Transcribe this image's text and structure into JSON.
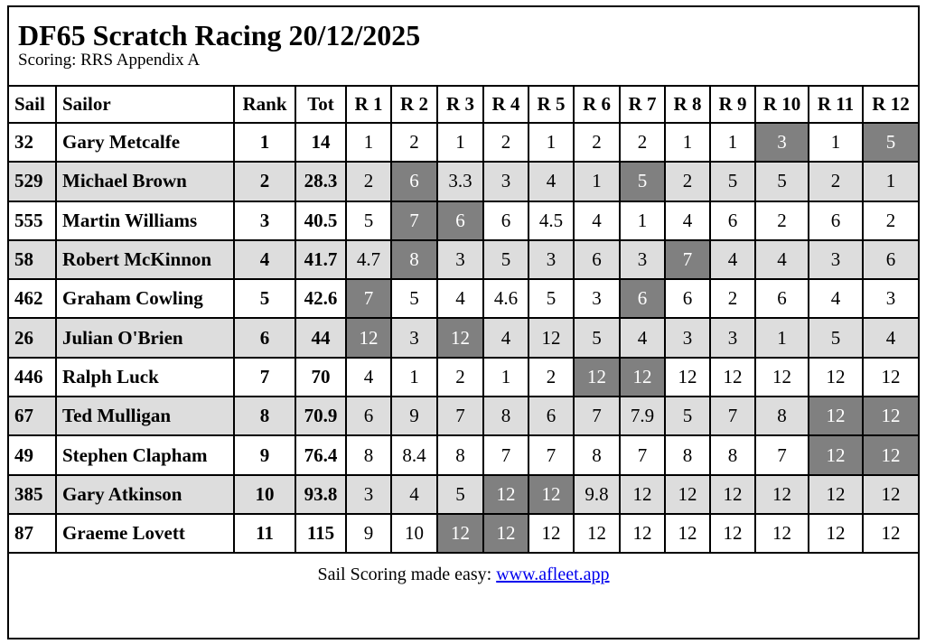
{
  "title": "DF65 Scratch Racing 20/12/2025",
  "subtitle": "Scoring: RRS Appendix A",
  "columns": [
    "Sail",
    "Sailor",
    "Rank",
    "Tot",
    "R 1",
    "R 2",
    "R 3",
    "R 4",
    "R 5",
    "R 6",
    "R 7",
    "R 8",
    "R 9",
    "R 10",
    "R 11",
    "R 12"
  ],
  "colors": {
    "discard_bg": "#808080",
    "alt_row_bg": "#dddddd",
    "link": "#0000ee"
  },
  "rows": [
    {
      "sail": "32",
      "sailor": "Gary Metcalfe",
      "rank": "1",
      "tot": "14",
      "races": [
        "1",
        "2",
        "1",
        "2",
        "1",
        "2",
        "2",
        "1",
        "1",
        "3",
        "1",
        "5"
      ],
      "discards": [
        9,
        11
      ]
    },
    {
      "sail": "529",
      "sailor": "Michael Brown",
      "rank": "2",
      "tot": "28.3",
      "races": [
        "2",
        "6",
        "3.3",
        "3",
        "4",
        "1",
        "5",
        "2",
        "5",
        "5",
        "2",
        "1"
      ],
      "discards": [
        1,
        6
      ]
    },
    {
      "sail": "555",
      "sailor": "Martin Williams",
      "rank": "3",
      "tot": "40.5",
      "races": [
        "5",
        "7",
        "6",
        "6",
        "4.5",
        "4",
        "1",
        "4",
        "6",
        "2",
        "6",
        "2"
      ],
      "discards": [
        1,
        2
      ]
    },
    {
      "sail": "58",
      "sailor": "Robert McKinnon",
      "rank": "4",
      "tot": "41.7",
      "races": [
        "4.7",
        "8",
        "3",
        "5",
        "3",
        "6",
        "3",
        "7",
        "4",
        "4",
        "3",
        "6"
      ],
      "discards": [
        1,
        7
      ]
    },
    {
      "sail": "462",
      "sailor": "Graham Cowling",
      "rank": "5",
      "tot": "42.6",
      "races": [
        "7",
        "5",
        "4",
        "4.6",
        "5",
        "3",
        "6",
        "6",
        "2",
        "6",
        "4",
        "3"
      ],
      "discards": [
        0,
        6
      ]
    },
    {
      "sail": "26",
      "sailor": "Julian O'Brien",
      "rank": "6",
      "tot": "44",
      "races": [
        "12",
        "3",
        "12",
        "4",
        "12",
        "5",
        "4",
        "3",
        "3",
        "1",
        "5",
        "4"
      ],
      "discards": [
        0,
        2
      ]
    },
    {
      "sail": "446",
      "sailor": "Ralph Luck",
      "rank": "7",
      "tot": "70",
      "races": [
        "4",
        "1",
        "2",
        "1",
        "2",
        "12",
        "12",
        "12",
        "12",
        "12",
        "12",
        "12"
      ],
      "discards": [
        5,
        6
      ]
    },
    {
      "sail": "67",
      "sailor": "Ted Mulligan",
      "rank": "8",
      "tot": "70.9",
      "races": [
        "6",
        "9",
        "7",
        "8",
        "6",
        "7",
        "7.9",
        "5",
        "7",
        "8",
        "12",
        "12"
      ],
      "discards": [
        10,
        11
      ]
    },
    {
      "sail": "49",
      "sailor": "Stephen Clapham",
      "rank": "9",
      "tot": "76.4",
      "races": [
        "8",
        "8.4",
        "8",
        "7",
        "7",
        "8",
        "7",
        "8",
        "8",
        "7",
        "12",
        "12"
      ],
      "discards": [
        10,
        11
      ]
    },
    {
      "sail": "385",
      "sailor": "Gary Atkinson",
      "rank": "10",
      "tot": "93.8",
      "races": [
        "3",
        "4",
        "5",
        "12",
        "12",
        "9.8",
        "12",
        "12",
        "12",
        "12",
        "12",
        "12"
      ],
      "discards": [
        3,
        4
      ]
    },
    {
      "sail": "87",
      "sailor": "Graeme Lovett",
      "rank": "11",
      "tot": "115",
      "races": [
        "9",
        "10",
        "12",
        "12",
        "12",
        "12",
        "12",
        "12",
        "12",
        "12",
        "12",
        "12"
      ],
      "discards": [
        2,
        3
      ]
    }
  ],
  "footer": {
    "text": "Sail Scoring made easy: ",
    "link_text": "www.afleet.app"
  }
}
